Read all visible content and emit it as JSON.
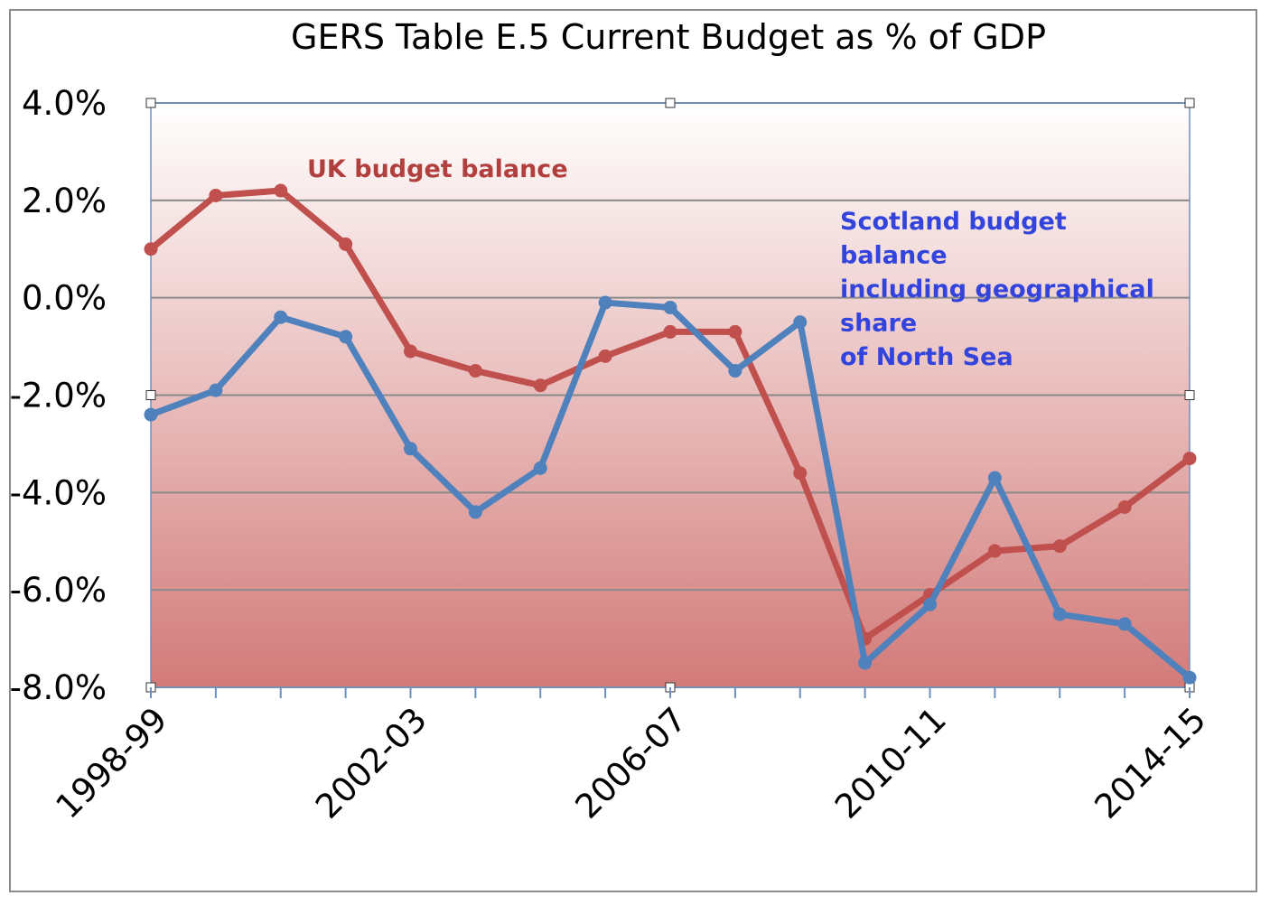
{
  "chart_data": {
    "type": "line",
    "title": "GERS Table E.5 Current Budget as % of GDP",
    "xlabel": "",
    "ylabel": "",
    "ylim": [
      -8.0,
      4.0
    ],
    "yticks": [
      "4.0%",
      "2.0%",
      "0.0%",
      "-2.0%",
      "-4.0%",
      "-6.0%",
      "-8.0%"
    ],
    "ytick_values": [
      4,
      2,
      0,
      -2,
      -4,
      -6,
      -8
    ],
    "categories": [
      "1998-99",
      "1999-00",
      "2000-01",
      "2001-02",
      "2002-03",
      "2003-04",
      "2004-05",
      "2005-06",
      "2006-07",
      "2007-08",
      "2008-09",
      "2009-10",
      "2010-11",
      "2011-12",
      "2012-13",
      "2013-14",
      "2014-15"
    ],
    "x_tick_labels": [
      {
        "index": 0,
        "label": "1998-99"
      },
      {
        "index": 4,
        "label": "2002-03"
      },
      {
        "index": 8,
        "label": "2006-07"
      },
      {
        "index": 12,
        "label": "2010-11"
      },
      {
        "index": 16,
        "label": "2014-15"
      }
    ],
    "grid": true,
    "series": [
      {
        "key": "uk",
        "color": "#c0504d",
        "values": [
          1.0,
          2.1,
          2.2,
          1.1,
          -1.1,
          -1.5,
          -1.8,
          -1.2,
          -0.7,
          -0.7,
          -3.6,
          -7.0,
          -6.1,
          -5.2,
          -5.1,
          -4.3,
          -3.3
        ]
      },
      {
        "key": "scotland",
        "color": "#4f81bd",
        "values": [
          -2.4,
          -1.9,
          -0.4,
          -0.8,
          -3.1,
          -4.4,
          -3.5,
          -0.1,
          -0.2,
          -1.5,
          -0.5,
          -7.5,
          -6.3,
          -3.7,
          -6.5,
          -6.7,
          -7.8
        ]
      }
    ],
    "annotations": {
      "uk": {
        "lines": [
          "UK budget balance"
        ],
        "color": "#b03f3d"
      },
      "scotland": {
        "lines": [
          "Scotland budget",
          "balance",
          "including geographical",
          "share",
          "of North Sea"
        ],
        "color": "#3344dd"
      }
    },
    "background_gradient": {
      "top": "#ffffff",
      "bottom": "#d27b79"
    }
  }
}
